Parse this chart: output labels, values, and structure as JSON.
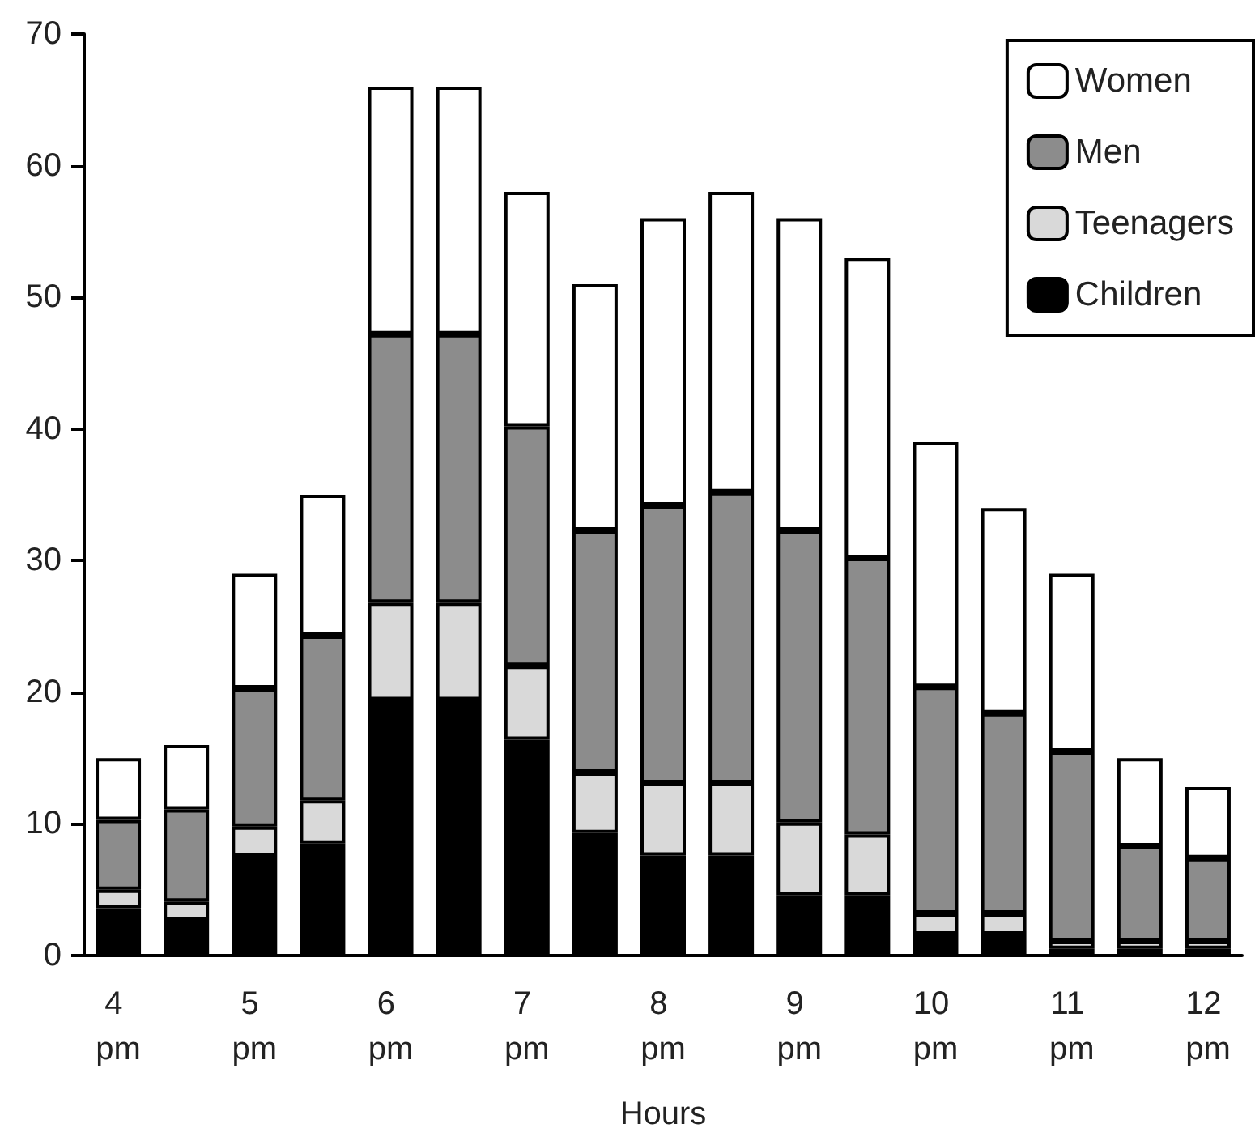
{
  "chart_data": {
    "type": "bar",
    "stacked": true,
    "xlabel": "Hours",
    "categories": [
      "4 pm",
      null,
      "5 pm",
      null,
      "6 pm",
      null,
      "7 pm",
      null,
      "8 pm",
      null,
      "9 pm",
      null,
      "10 pm",
      null,
      "11 pm",
      null,
      "12 pm"
    ],
    "series": [
      {
        "name": "Children",
        "color": "#000000",
        "values": [
          3.6,
          2.7,
          7.5,
          8.5,
          19.4,
          19.4,
          16.4,
          9.3,
          7.6,
          7.6,
          4.6,
          4.6,
          1.6,
          1.6,
          0.5,
          0.5,
          0.5
        ]
      },
      {
        "name": "Teenagers",
        "color": "#d9d9d9",
        "values": [
          1.4,
          1.4,
          2.3,
          3.3,
          7.4,
          7.4,
          5.6,
          4.6,
          5.5,
          5.5,
          5.5,
          4.6,
          1.6,
          1.6,
          0.6,
          0.6,
          0.6
        ]
      },
      {
        "name": "Men",
        "color": "#8c8c8c",
        "values": [
          5.3,
          7.0,
          10.5,
          12.5,
          20.4,
          20.4,
          18.2,
          18.4,
          21.1,
          22.1,
          22.2,
          21.0,
          17.2,
          15.2,
          14.4,
          7.2,
          6.3
        ]
      },
      {
        "name": "Women",
        "color": "#ffffff",
        "values": [
          4.7,
          4.9,
          8.7,
          10.7,
          18.8,
          18.8,
          17.8,
          18.7,
          21.8,
          22.8,
          23.7,
          22.8,
          18.6,
          15.6,
          13.5,
          6.7,
          5.4
        ]
      }
    ],
    "ylim": [
      0,
      70
    ],
    "yticks": [
      0,
      10,
      20,
      30,
      40,
      50,
      60,
      70
    ],
    "grid": false,
    "legend": "top right"
  }
}
